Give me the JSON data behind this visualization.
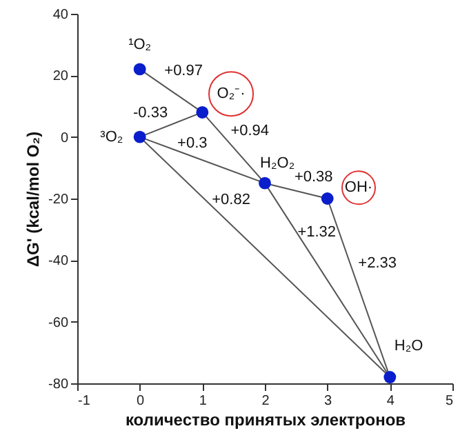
{
  "chart_data": {
    "type": "scatter",
    "xlabel": "количество принятых электронов",
    "ylabel": "ΔG' (kcal/mol O₂)",
    "xlim": [
      -1,
      5
    ],
    "xticks": [
      -1,
      0,
      1,
      2,
      3,
      4,
      5
    ],
    "ylim": [
      -80,
      40
    ],
    "yticks": [
      -80,
      -60,
      -40,
      -20,
      0,
      20,
      40
    ],
    "grid": false,
    "series": [
      {
        "type": "line",
        "color": "#555555",
        "x": [
          0,
          1
        ],
        "values": [
          22,
          8
        ],
        "line_style": "solid"
      },
      {
        "type": "line",
        "color": "#555555",
        "x": [
          0,
          1
        ],
        "values": [
          0,
          8
        ],
        "line_style": "solid"
      },
      {
        "type": "line",
        "color": "#555555",
        "x": [
          0,
          2
        ],
        "values": [
          0,
          -15
        ],
        "line_style": "solid"
      },
      {
        "type": "line",
        "color": "#555555",
        "x": [
          1,
          2
        ],
        "values": [
          8,
          -15
        ],
        "line_style": "solid"
      },
      {
        "type": "line",
        "color": "#555555",
        "x": [
          2,
          3
        ],
        "values": [
          -15,
          -20
        ],
        "line_style": "solid"
      },
      {
        "type": "line",
        "color": "#555555",
        "x": [
          0,
          4
        ],
        "values": [
          0,
          -78
        ],
        "line_style": "solid"
      },
      {
        "type": "line",
        "color": "#555555",
        "x": [
          2,
          4
        ],
        "values": [
          -15,
          -78
        ],
        "line_style": "solid"
      },
      {
        "type": "line",
        "color": "#555555",
        "x": [
          3,
          4
        ],
        "values": [
          -20,
          -78
        ],
        "line_style": "solid"
      },
      {
        "color": "#0a1ecc",
        "x": [
          0,
          0,
          1,
          2,
          3,
          4
        ],
        "values": [
          22,
          0,
          8,
          -15,
          -20,
          -78
        ],
        "marker": "circle"
      }
    ],
    "annotations": [
      "¹O₂",
      "³O₂",
      "O₂⁻·",
      "H₂O₂",
      "OH·",
      "H₂O",
      "+0.97",
      "-0.33",
      "+0.94",
      "+0.3",
      "+0.38",
      "+0.82",
      "+1.32",
      "+2.33"
    ]
  }
}
